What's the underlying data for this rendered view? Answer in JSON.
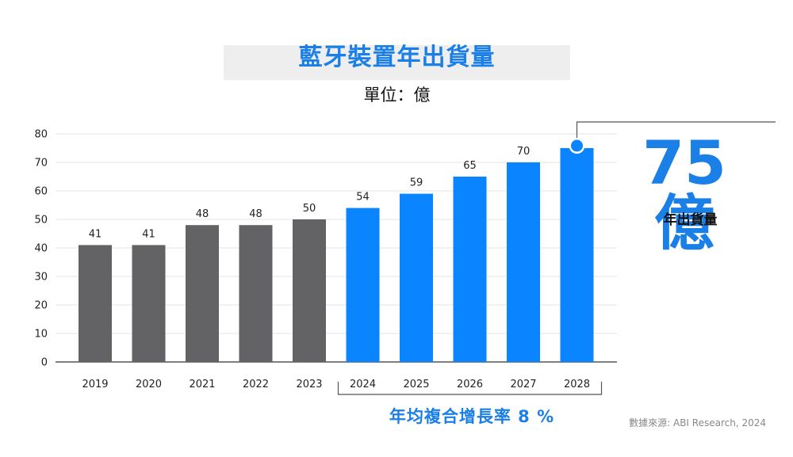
{
  "title": "藍牙裝置年出貨量",
  "subtitle": "單位：億",
  "callout": {
    "value": "75億",
    "label": "年出貨量"
  },
  "cagr_label": "年均複合增長率 8 %",
  "source": "數據來源: ABI Research, 2024",
  "colors": {
    "historical": "#636366",
    "forecast": "#0a84ff",
    "accent": "#1a7fe6"
  },
  "chart_data": {
    "type": "bar",
    "categories": [
      "2019",
      "2020",
      "2021",
      "2022",
      "2023",
      "2024",
      "2025",
      "2026",
      "2027",
      "2028"
    ],
    "values": [
      41,
      41,
      48,
      48,
      50,
      54,
      59,
      65,
      70,
      75
    ],
    "data_labels": [
      "41",
      "41",
      "48",
      "48",
      "50",
      "54",
      "59",
      "65",
      "70",
      ""
    ],
    "historical": [
      true,
      true,
      true,
      true,
      true,
      false,
      false,
      false,
      false,
      false
    ],
    "yticks": [
      0,
      10,
      20,
      30,
      40,
      50,
      60,
      70,
      80
    ],
    "ylim": [
      0,
      80
    ],
    "grid": true,
    "xlabel": "",
    "ylabel": ""
  }
}
